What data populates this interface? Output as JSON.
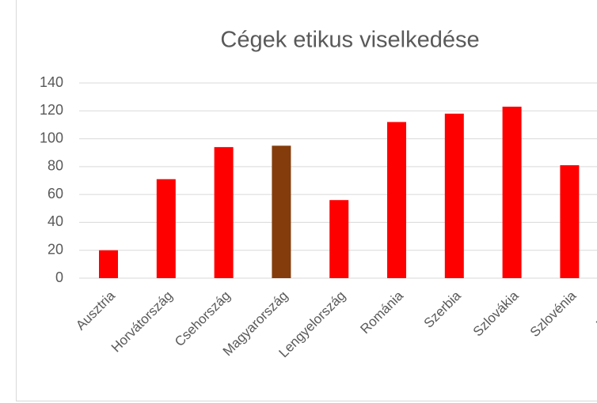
{
  "chart_data": {
    "type": "bar",
    "title": "Cégek etikus viselkedése",
    "categories": [
      "Ausztria",
      "Horvátország",
      "Csehország",
      "Magyarország",
      "Lengyelország",
      "Románia",
      "Szerbia",
      "Szlovákia",
      "Szlovénia",
      "Ukrajna"
    ],
    "values": [
      20,
      71,
      94,
      95,
      56,
      112,
      118,
      123,
      81,
      null
    ],
    "colors": [
      "#ff0000",
      "#ff0000",
      "#ff0000",
      "#843c0c",
      "#ff0000",
      "#ff0000",
      "#ff0000",
      "#ff0000",
      "#ff0000",
      "#ff0000"
    ],
    "ylim": [
      0,
      140
    ],
    "yticks": [
      0,
      20,
      40,
      60,
      80,
      100,
      120,
      140
    ],
    "grid": true
  }
}
